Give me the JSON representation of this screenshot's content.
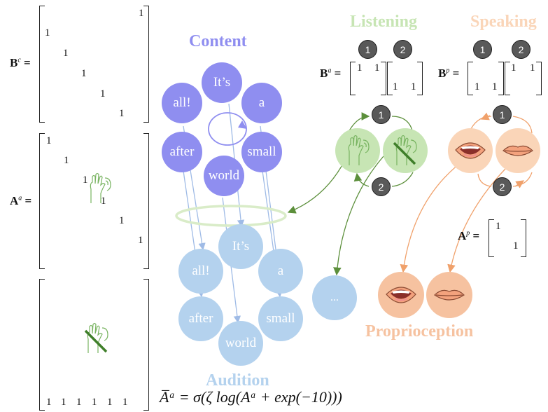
{
  "matrices": {
    "bc_label": "B",
    "bc_sup": "c",
    "aa_label": "A",
    "aa_sup": "a",
    "ap_label": "A",
    "ap_sup": "p",
    "ba_label": "B",
    "ba_sup": "a",
    "bp_label": "B",
    "bp_sup": "p",
    "equals": "=",
    "one": "1"
  },
  "titles": {
    "content": "Content",
    "audition": "Audition",
    "listening": "Listening",
    "speaking": "Speaking",
    "proprioception": "Proprioception"
  },
  "content_words": [
    "It’s",
    "a",
    "small",
    "world",
    "after",
    "all!"
  ],
  "audition_words": [
    "It’s",
    "a",
    "small",
    "world",
    "after",
    "all!"
  ],
  "ellipsis": "...",
  "state_numbers": [
    "1",
    "2"
  ],
  "formula": "A̅ᵃ = σ(ζ log(Aᵃ + exp(−10)))",
  "colors": {
    "content": "#8f8ef0",
    "audition": "#b4d2ee",
    "listening": "#c7e5b4",
    "speaking": "#fad5b8",
    "proprioception": "#f6c2a0",
    "listening_arrow": "#5c8f3b",
    "speaking_arrow": "#f0a16b"
  },
  "icons": [
    "ear-icon",
    "ear-crossed-icon",
    "mouth-open-icon",
    "mouth-closed-icon",
    "cycle-arrow-icon"
  ]
}
